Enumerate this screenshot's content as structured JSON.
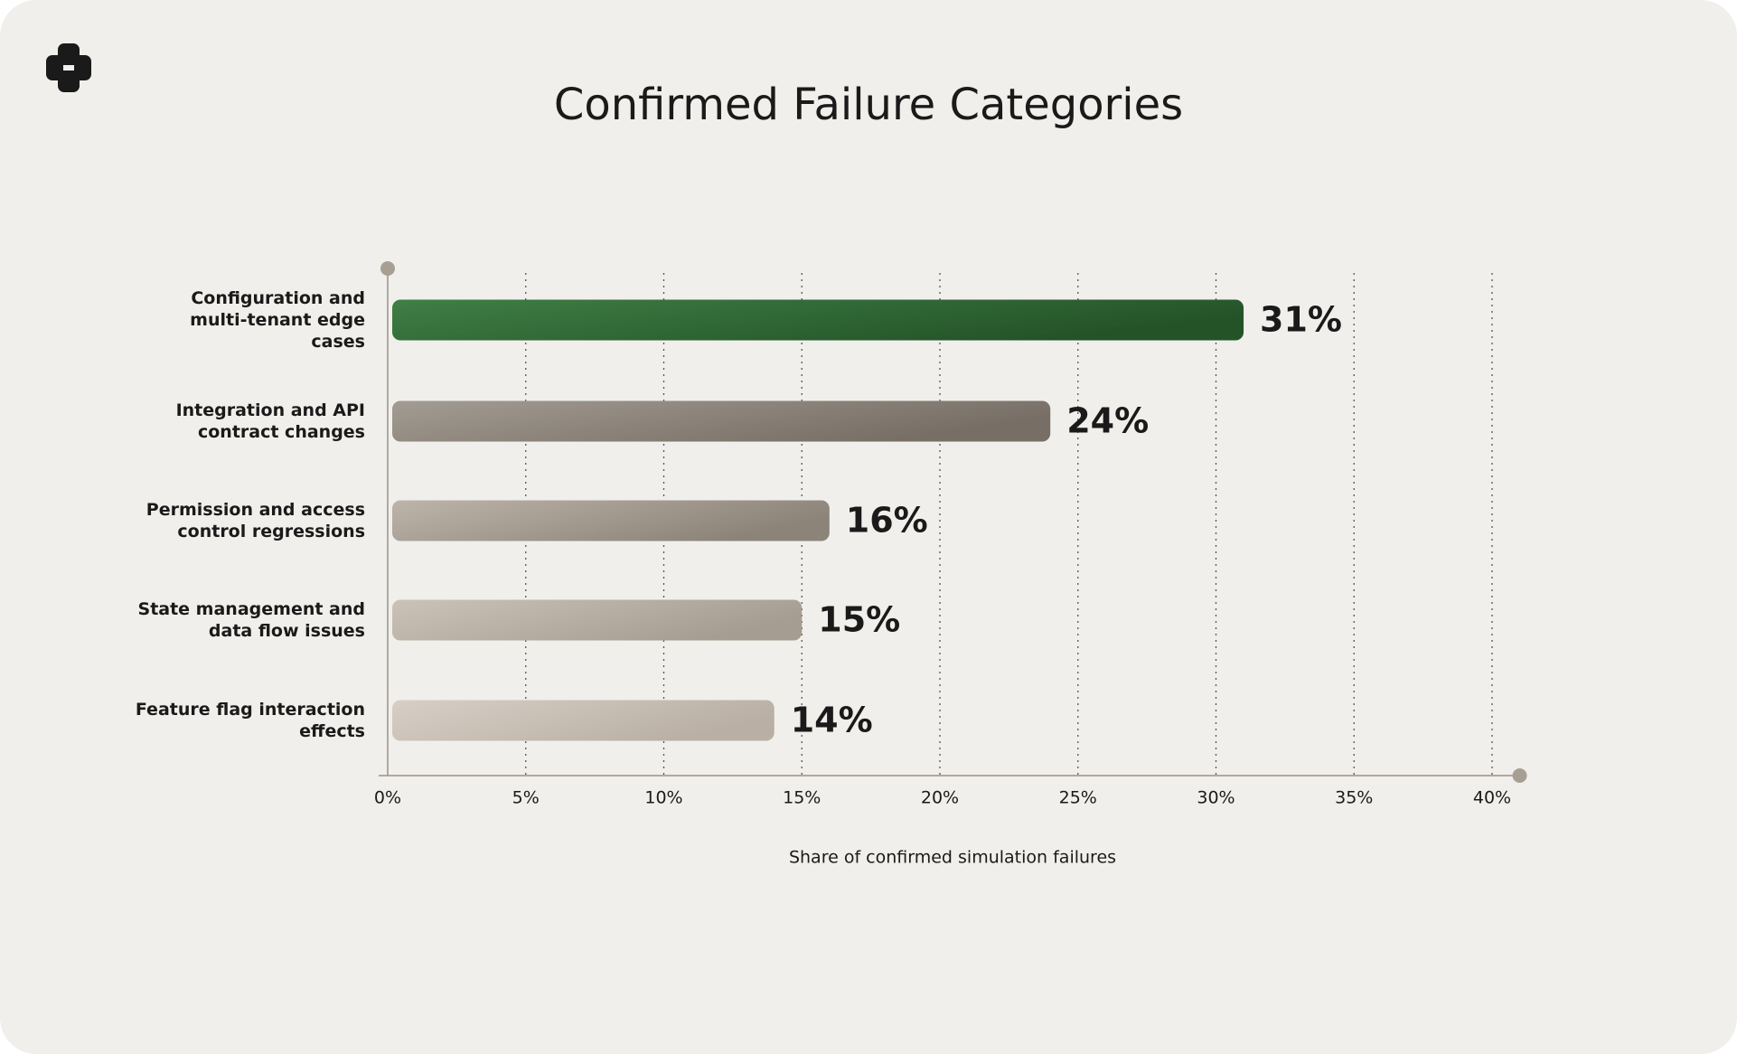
{
  "chart_data": {
    "type": "bar",
    "orientation": "horizontal",
    "title": "Confirmed Failure Categories",
    "x_label": "Share of confirmed simulation failures",
    "categories": [
      "Configuration and multi-tenant edge cases",
      "Integration and API contract changes",
      "Permission and access control regressions",
      "State management and data flow issues",
      "Feature flag interaction effects"
    ],
    "values": [
      31,
      24,
      16,
      15,
      14
    ],
    "value_labels": [
      "31%",
      "24%",
      "16%",
      "15%",
      "14%"
    ],
    "colors": [
      [
        "#3f7f46",
        "#245328"
      ],
      [
        "#a39c92",
        "#776e65"
      ],
      [
        "#bdb4aa",
        "#8c8379"
      ],
      [
        "#cbc3b8",
        "#a69d92"
      ],
      [
        "#d7cfc6",
        "#b9afa4"
      ]
    ],
    "xlim": [
      0,
      41
    ],
    "xticks": [
      {
        "value": 0,
        "label": "0%"
      },
      {
        "value": 5,
        "label": "5%"
      },
      {
        "value": 10,
        "label": "10%"
      },
      {
        "value": 15,
        "label": "15%"
      },
      {
        "value": 20,
        "label": "20%"
      },
      {
        "value": 25,
        "label": "25%"
      },
      {
        "value": 30,
        "label": "30%"
      },
      {
        "value": 35,
        "label": "35%"
      },
      {
        "value": 40,
        "label": "40%"
      }
    ],
    "grid": true
  }
}
